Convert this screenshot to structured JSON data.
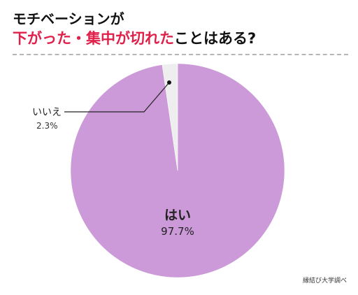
{
  "title": {
    "line1": "モチベーションが",
    "line2_accent": "下がった・集中が切れた",
    "line2_rest": "ことはある?"
  },
  "source": "縁結び大学調べ",
  "chart_data": {
    "type": "pie",
    "slices": [
      {
        "label": "はい",
        "value": 97.7,
        "value_label": "97.7%",
        "color": "#cc99d9"
      },
      {
        "label": "いいえ",
        "value": 2.3,
        "value_label": "2.3%",
        "color": "#eeeeee"
      }
    ],
    "start": "12 o'clock",
    "direction": "clockwise",
    "legend": "none"
  }
}
